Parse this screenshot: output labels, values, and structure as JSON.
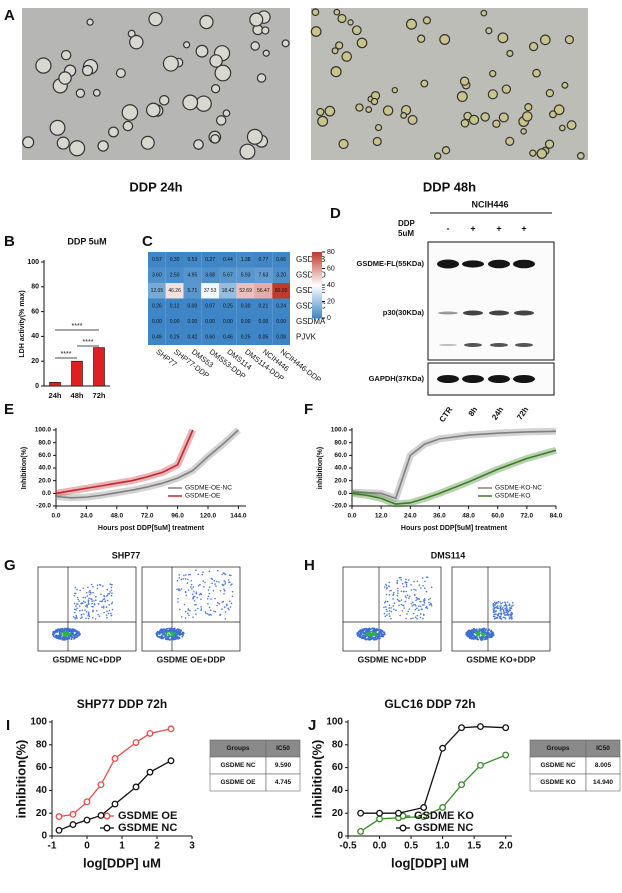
{
  "panels": [
    {
      "label": "A",
      "captions": [
        "DDP 24h",
        "DDP 48h"
      ]
    },
    {
      "label": "D",
      "title": "NCIH446",
      "treatment": [
        "DDP",
        "5uM"
      ],
      "signs": [
        "-",
        "+",
        "+",
        "+"
      ],
      "bands": [
        "GSDME-FL(55KDa)",
        "p30(30KDa)",
        "GAPDH(37KDa)"
      ],
      "lanes": [
        "CTR",
        "8h",
        "24h",
        "72h"
      ]
    },
    {
      "label": "G",
      "title": "SHP77",
      "captions": [
        "GSDME NC+DDP",
        "GSDME OE+DDP"
      ]
    },
    {
      "label": "H",
      "title": "DMS114",
      "captions": [
        "GSDME NC+DDP",
        "GSDME KO+DDP"
      ]
    }
  ],
  "chart_data": [
    {
      "type": "bar",
      "panel": "B",
      "title": "DDP 5uM",
      "y_label": "LDH activity(% max)",
      "categories": [
        "24h",
        "48h",
        "72h"
      ],
      "values": [
        3,
        20,
        31
      ],
      "color": "#e02020",
      "ylim": [
        0,
        100
      ],
      "yticks": [
        0,
        20,
        40,
        60,
        80,
        100
      ],
      "annotations": [
        "****",
        "****",
        "****"
      ]
    },
    {
      "type": "heatmap",
      "panel": "C",
      "columns": [
        "SHP77",
        "SHP77-DDP",
        "DMS53",
        "DMS53-DDP",
        "DMS114",
        "DMS114-DDP",
        "NCIH446",
        "NCIH446-DDP"
      ],
      "rows": [
        "GSDMB",
        "GSDMD",
        "GSDME",
        "GSDMC",
        "GSDMA",
        "PJVK"
      ],
      "values": [
        [
          0.57,
          0.3,
          0.53,
          0.27,
          0.44,
          1.38,
          0.77,
          0.66
        ],
        [
          3.6,
          2.5,
          4.95,
          3.68,
          5.67,
          5.93,
          7.63,
          3.2
        ],
        [
          12.05,
          46.26,
          5.71,
          37.53,
          18.42,
          52.69,
          56.47,
          80
        ],
        [
          0.26,
          0.12,
          0,
          0.07,
          0.25,
          0.3,
          0.21,
          0.24
        ],
        [
          0,
          0,
          0,
          0,
          0,
          0,
          0,
          0
        ],
        [
          0.49,
          0.25,
          0.42,
          0.6,
          0.46,
          0.25,
          0.05,
          0.08
        ]
      ],
      "value_labels": [
        [
          "0.57",
          "0.30",
          "0.53",
          "0.27",
          "0.44",
          "1.38",
          "0.77",
          "0.66"
        ],
        [
          "3.60",
          "2.50",
          "4.95",
          "3.68",
          "5.67",
          "5.93",
          "7.63",
          "3.20"
        ],
        [
          "12.05",
          "46.26",
          "5.71",
          "37.53",
          "18.42",
          "52.69",
          "56.47",
          "80.00"
        ],
        [
          "0.26",
          "0.12",
          "0.00",
          "0.07",
          "0.25",
          "0.30",
          "0.21",
          "0.24"
        ],
        [
          "0.00",
          "0.00",
          "0.00",
          "0.00",
          "0.00",
          "0.00",
          "0.00",
          "0.00"
        ],
        [
          "0.49",
          "0.25",
          "0.42",
          "0.60",
          "0.46",
          "0.25",
          "0.05",
          "0.08"
        ]
      ],
      "clim": [
        0,
        80
      ],
      "cticks": [
        0,
        20,
        40,
        60,
        80
      ],
      "colors": [
        "#3d85c6",
        "#ffffff",
        "#c0392b"
      ]
    },
    {
      "type": "line",
      "panel": "E",
      "y_label": "Inhibition(%)",
      "x_label": "Hours post DDP[5uM] treatment",
      "x": [
        0,
        12,
        24,
        36,
        48,
        60,
        72,
        84,
        96,
        108,
        120,
        132,
        144
      ],
      "series": [
        {
          "name": "GSDME-OE-NC",
          "color": "#808080",
          "values": [
            -5,
            -7,
            -6,
            -3,
            1,
            5,
            10,
            16,
            24,
            36,
            58,
            78,
            100
          ]
        },
        {
          "name": "GSDME-OE",
          "color": "#c0272d",
          "values": [
            0,
            4,
            8,
            12,
            16,
            20,
            26,
            33,
            45,
            100,
            null,
            null,
            null
          ]
        }
      ],
      "xlim": [
        0,
        150
      ],
      "ylim": [
        -20,
        100
      ],
      "xticks": [
        {
          "value": 0,
          "label": "0.0"
        },
        {
          "value": 24,
          "label": "24.0"
        },
        {
          "value": 48,
          "label": "48.0"
        },
        {
          "value": 72,
          "label": "72.0"
        },
        {
          "value": 96,
          "label": "96.0"
        },
        {
          "value": 120,
          "label": "120.0"
        },
        {
          "value": 144,
          "label": "144.0"
        }
      ],
      "yticks": [
        {
          "value": -20,
          "label": "-20.0"
        },
        {
          "value": 0,
          "label": "0.0"
        },
        {
          "value": 20,
          "label": "20.0"
        },
        {
          "value": 40,
          "label": "40.0"
        },
        {
          "value": 60,
          "label": "60.0"
        },
        {
          "value": 80,
          "label": "80.0"
        },
        {
          "value": 100,
          "label": "100.0"
        }
      ]
    },
    {
      "type": "line",
      "panel": "F",
      "y_label": "inhibition(%)",
      "x_label": "Hours post DDP[5uM] treatment",
      "x": [
        0,
        6,
        12,
        18,
        24,
        30,
        36,
        48,
        60,
        72,
        84
      ],
      "series": [
        {
          "name": "GSDME-KO-NC",
          "color": "#808080",
          "values": [
            2,
            1,
            0,
            -8,
            60,
            78,
            86,
            92,
            95,
            97,
            98
          ]
        },
        {
          "name": "GSDME-KO",
          "color": "#3a7d22",
          "values": [
            0,
            -3,
            -8,
            -17,
            -15,
            -8,
            0,
            18,
            38,
            55,
            68
          ]
        }
      ],
      "xlim": [
        0,
        84
      ],
      "ylim": [
        -20,
        100
      ],
      "xticks": [
        {
          "value": 0,
          "label": "0.0"
        },
        {
          "value": 12,
          "label": "12.0"
        },
        {
          "value": 24,
          "label": "24.0"
        },
        {
          "value": 36,
          "label": "36.0"
        },
        {
          "value": 48,
          "label": "48.0"
        },
        {
          "value": 60,
          "label": "60.0"
        },
        {
          "value": 72,
          "label": "72.0"
        },
        {
          "value": 84,
          "label": "84.0"
        }
      ],
      "yticks": [
        {
          "value": -20,
          "label": "-20.0"
        },
        {
          "value": 0,
          "label": "0.0"
        },
        {
          "value": 20,
          "label": "20.0"
        },
        {
          "value": 40,
          "label": "40.0"
        },
        {
          "value": 60,
          "label": "60.0"
        },
        {
          "value": 80,
          "label": "80.0"
        },
        {
          "value": 100,
          "label": "100.0"
        }
      ]
    },
    {
      "type": "scatter",
      "panel": "I",
      "title": "SHP77 DDP 72h",
      "y_label": "inhibition(%)",
      "x_label": "log[DDP] uM",
      "x": [
        -0.8,
        -0.4,
        0,
        0.4,
        0.8,
        1.4,
        1.8,
        2.4
      ],
      "series": [
        {
          "name": "GSDME OE",
          "color": "#e0504a",
          "values": [
            17,
            19,
            30,
            45,
            68,
            82,
            90,
            94
          ]
        },
        {
          "name": "GSDME NC",
          "color": "#111111",
          "values": [
            5,
            10,
            14,
            18,
            28,
            43,
            56,
            66
          ]
        }
      ],
      "xlim": [
        -1,
        3
      ],
      "ylim": [
        0,
        100
      ],
      "xticks": [
        -1,
        0,
        1,
        2,
        3
      ],
      "yticks": [
        0,
        20,
        40,
        60,
        80,
        100
      ],
      "table": {
        "header": [
          "Groups",
          "IC50"
        ],
        "rows": [
          [
            "GSDME NC",
            "9.590"
          ],
          [
            "GSDME OE",
            "4.745"
          ]
        ]
      }
    },
    {
      "type": "scatter",
      "panel": "J",
      "title": "GLC16 DDP 72h",
      "y_label": "inhibition(%)",
      "x_label": "log[DDP] uM",
      "x": [
        -0.3,
        0,
        0.3,
        0.7,
        1.0,
        1.3,
        1.6,
        2.0
      ],
      "series": [
        {
          "name": "GSDME KO",
          "color": "#3a8a2a",
          "values": [
            4,
            15,
            16,
            17,
            25,
            45,
            62,
            71
          ]
        },
        {
          "name": "GSDME NC",
          "color": "#111111",
          "values": [
            20,
            20,
            20,
            25,
            77,
            95,
            96,
            95
          ]
        }
      ],
      "xlim": [
        -0.5,
        2.1
      ],
      "ylim": [
        0,
        100
      ],
      "xticks": [
        -0.5,
        {
          "value": 0,
          "label": "0.0"
        },
        0.5,
        {
          "value": 1,
          "label": "1.0"
        },
        1.5,
        {
          "value": 2,
          "label": "2.0"
        }
      ],
      "yticks": [
        0,
        20,
        40,
        60,
        80,
        100
      ],
      "table": {
        "header": [
          "Groups",
          "IC50"
        ],
        "rows": [
          [
            "GSDME NC",
            "8.005"
          ],
          [
            "GSDME KO",
            "14.940"
          ]
        ]
      }
    }
  ]
}
